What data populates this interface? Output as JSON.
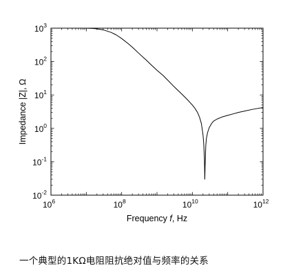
{
  "chart_data": {
    "type": "line",
    "xlabel_text": "Frequency ",
    "xlabel_italic": "f",
    "xlabel_suffix": ", Hz",
    "ylabel": "Impedance |Z|, Ω",
    "x_scale": "log",
    "y_scale": "log",
    "xlim": [
      1000000.0,
      1000000000000.0
    ],
    "ylim": [
      0.01,
      1000
    ],
    "x_ticks": [
      {
        "base": "10",
        "exp": "6",
        "value": 1000000.0
      },
      {
        "base": "10",
        "exp": "8",
        "value": 100000000.0
      },
      {
        "base": "10",
        "exp": "10",
        "value": 10000000000.0
      },
      {
        "base": "10",
        "exp": "12",
        "value": 1000000000000.0
      }
    ],
    "y_ticks": [
      {
        "base": "10",
        "exp": "-2",
        "value": 0.01
      },
      {
        "base": "10",
        "exp": "-1",
        "value": 0.1
      },
      {
        "base": "10",
        "exp": "0",
        "value": 1
      },
      {
        "base": "10",
        "exp": "1",
        "value": 10
      },
      {
        "base": "10",
        "exp": "2",
        "value": 100
      },
      {
        "base": "10",
        "exp": "3",
        "value": 1000
      }
    ],
    "grid": false,
    "legend": "none",
    "series": [
      {
        "color": "#000000",
        "x": [
          10000000.0,
          15000000.0,
          20000000.0,
          30000000.0,
          50000000.0,
          70000000.0,
          100000000.0,
          150000000.0,
          200000000.0,
          300000000.0,
          500000000.0,
          700000000.0,
          1000000000.0,
          1500000000.0,
          2000000000.0,
          3000000000.0,
          5000000000.0,
          7000000000.0,
          10000000000.0,
          12000000000.0,
          14000000000.0,
          16000000000.0,
          18000000000.0,
          20000000000.0,
          21000000000.0,
          22000000000.0,
          22500000000.0,
          23000000000.0,
          24000000000.0,
          25000000000.0,
          27000000000.0,
          30000000000.0,
          35000000000.0,
          40000000000.0,
          50000000000.0,
          70000000000.0,
          100000000000.0,
          150000000000.0,
          200000000000.0,
          300000000000.0,
          500000000000.0,
          700000000000.0,
          1000000000000.0
        ],
        "y": [
          1000,
          980,
          955,
          890,
          750,
          630,
          490,
          350,
          270,
          180,
          110,
          78,
          55,
          38,
          28,
          18,
          10.7,
          7.5,
          5.0,
          3.9,
          3.0,
          2.15,
          1.4,
          0.65,
          0.35,
          0.12,
          0.03,
          0.08,
          0.3,
          0.5,
          0.75,
          1.05,
          1.4,
          1.65,
          1.9,
          2.2,
          2.45,
          2.75,
          3.0,
          3.3,
          3.7,
          3.95,
          4.2
        ]
      }
    ]
  },
  "caption": "一个典型的1KΩ电阻阻抗绝对值与频率的关系"
}
